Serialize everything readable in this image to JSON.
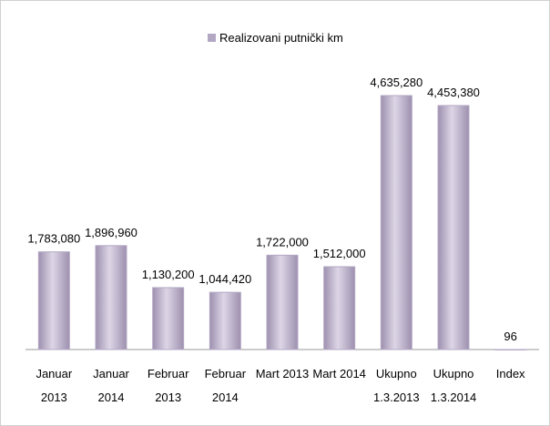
{
  "chart_data": {
    "type": "bar",
    "legend": "Realizovani putnički km",
    "categories": [
      "Januar 2013",
      "Januar 2014",
      "Februar 2013",
      "Februar 2014",
      "Mart 2013",
      "Mart 2014",
      "Ukupno 1.3.2013",
      "Ukupno 1.3.2014",
      "Index"
    ],
    "values": [
      1783080,
      1896960,
      1130200,
      1044420,
      1722000,
      1512000,
      4635280,
      4453380,
      96
    ],
    "value_labels": [
      "1,783,080",
      "1,896,960",
      "1,130,200",
      "1,044,420",
      "1,722,000",
      "1,512,000",
      "4,635,280",
      "4,453,380",
      "96"
    ],
    "color": "#b3a8c4"
  }
}
